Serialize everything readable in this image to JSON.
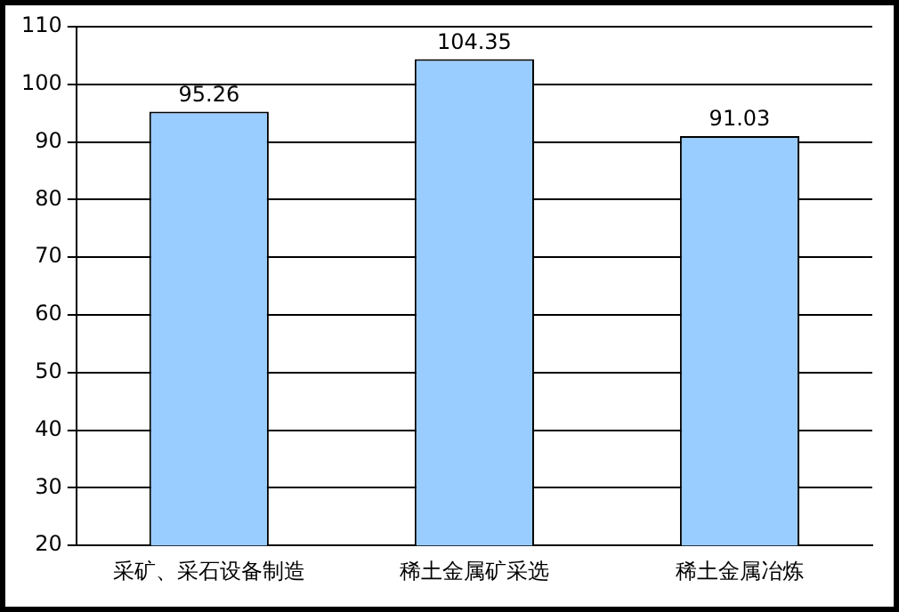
{
  "chart_data": {
    "type": "bar",
    "categories": [
      "采矿、采石设备制造",
      "稀土金属矿采选",
      "稀土金属冶炼"
    ],
    "values": [
      95.26,
      104.35,
      91.03
    ],
    "color": "#99ccff",
    "data_labels": true,
    "grid": "y",
    "legend": false,
    "ylim": [
      20,
      110
    ],
    "yticks": [
      20,
      30,
      40,
      50,
      60,
      70,
      80,
      90,
      100,
      110
    ]
  }
}
